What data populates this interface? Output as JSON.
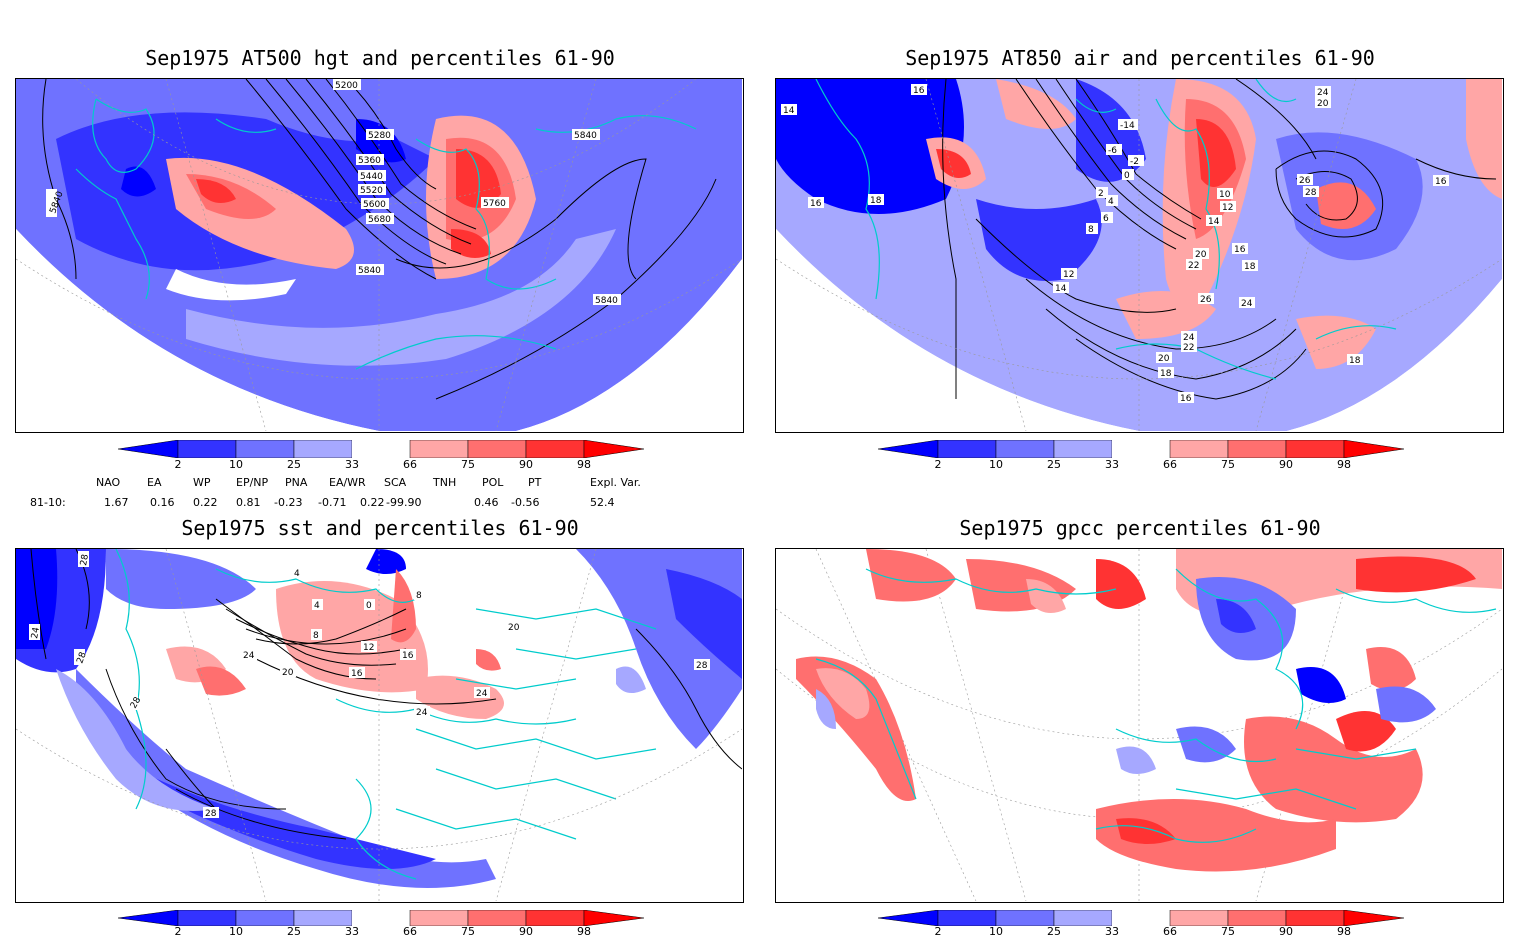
{
  "panels": {
    "p1": {
      "title": "Sep1975 AT500 hgt and percentiles 61-90",
      "contour_labels": [
        "5200",
        "5280",
        "5360",
        "5440",
        "5520",
        "5600",
        "5680",
        "5760",
        "5840",
        "5840",
        "5840",
        "5840"
      ]
    },
    "p2": {
      "title": "Sep1975 AT850 air and percentiles 61-90",
      "contour_labels": [
        "14",
        "16",
        "18",
        "16",
        "-14",
        "-6",
        "-2",
        "0",
        "2",
        "4",
        "6",
        "8",
        "10",
        "12",
        "14",
        "16",
        "18",
        "20",
        "22",
        "24",
        "26",
        "28",
        "24",
        "22",
        "20",
        "18",
        "16",
        "12",
        "14",
        "16",
        "18",
        "26",
        "24",
        "20"
      ]
    },
    "p3": {
      "title": "Sep1975 sst and percentiles 61-90",
      "contour_labels": [
        "28",
        "24",
        "28",
        "28",
        "4",
        "0",
        "4",
        "8",
        "8",
        "12",
        "16",
        "16",
        "20",
        "24",
        "20",
        "24",
        "28",
        "24",
        "28"
      ]
    },
    "p4": {
      "title": "Sep1975 gpcc percentiles 61-90"
    }
  },
  "colorbar": {
    "labels": [
      "2",
      "10",
      "25",
      "33",
      "66",
      "75",
      "90",
      "98"
    ],
    "colors": {
      "c2": "#0000ff",
      "c10": "#3333ff",
      "c25": "#6f72ff",
      "c33": "#a6a8ff",
      "c66": "#ffa6a6",
      "c75": "#ff6f6f",
      "c90": "#ff3333",
      "c98": "#ff0000"
    }
  },
  "indices": {
    "header": [
      "NAO",
      "EA",
      "WP",
      "EP/NP",
      "PNA",
      "EA/WR",
      "SCA",
      "TNH",
      "POL",
      "PT",
      "Expl. Var."
    ],
    "row_label": "81-10:",
    "values": [
      "1.67",
      "0.16",
      "0.22",
      "0.81",
      "-0.23",
      "-0.71",
      "0.22",
      "-99.90",
      "0.46",
      "-0.56",
      "52.4"
    ]
  },
  "colors": {
    "coast": "#00cccc",
    "contour": "#000000",
    "grid": "#999999"
  }
}
